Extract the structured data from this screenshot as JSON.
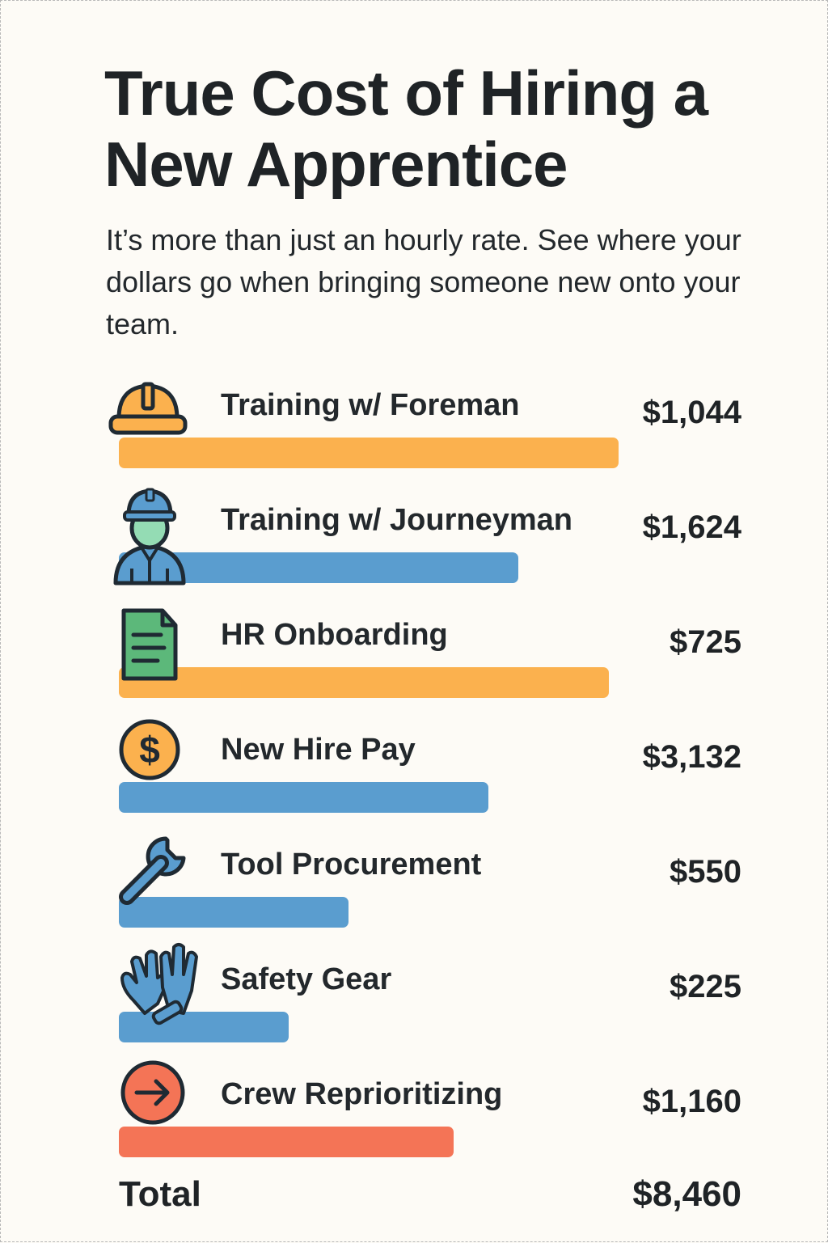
{
  "title": "True Cost of Hiring a New Apprentice",
  "subtitle": "It’s more than just an hourly rate. See where your dollars go when bringing someone new onto your team.",
  "colors": {
    "orange": "#fbb14e",
    "blue": "#5a9dcf",
    "red": "#f47456",
    "green": "#5cb87a",
    "mint": "#94dcb4"
  },
  "chart_data": {
    "type": "bar",
    "orientation": "horizontal",
    "title": "True Cost of Hiring a New Apprentice",
    "categories": [
      "Training w/ Foreman",
      "Training w/ Journeyman",
      "HR Onboarding",
      "New Hire Pay",
      "Tool Procurement",
      "Safety Gear",
      "Crew Reprioritizing"
    ],
    "values": [
      1044,
      1624,
      725,
      3132,
      550,
      225,
      1160
    ],
    "value_labels": [
      "$1,044",
      "$1,624",
      "$725",
      "$3,132",
      "$550",
      "$225",
      "$1,160"
    ],
    "bar_fill_fraction": [
      1.0,
      0.8,
      0.98,
      0.74,
      0.46,
      0.34,
      0.67
    ],
    "bar_colors": [
      "orange",
      "blue",
      "orange",
      "blue",
      "blue",
      "blue",
      "red"
    ],
    "icons": [
      "hard-hat-icon",
      "worker-icon",
      "document-icon",
      "dollar-coin-icon",
      "wrench-icon",
      "gloves-icon",
      "arrow-circle-icon"
    ],
    "total_label": "Total",
    "total_value": "$8,460",
    "currency_symbol": "$"
  }
}
